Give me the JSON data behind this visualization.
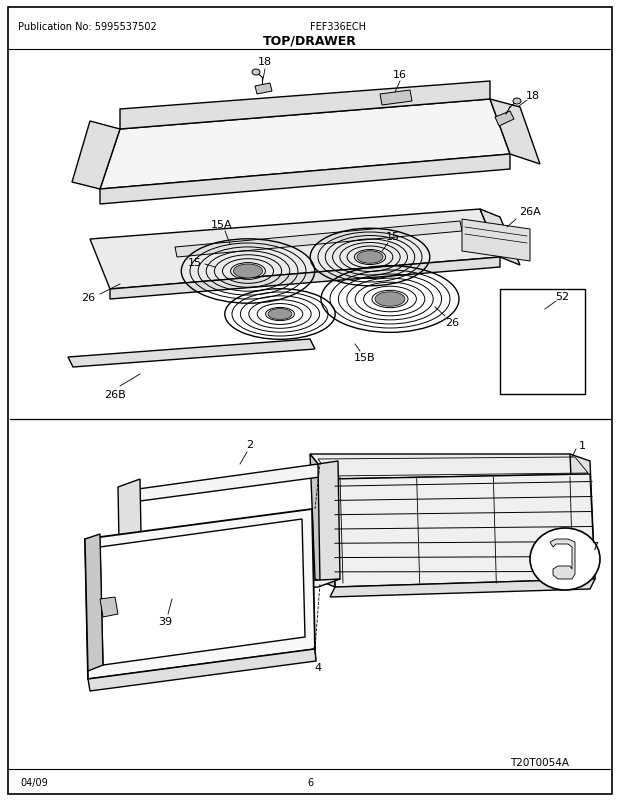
{
  "title": "TOP/DRAWER",
  "pub_no": "Publication No: 5995537502",
  "model": "FEF336ECH",
  "date": "04/09",
  "page": "6",
  "diagram_code": "T20T0054A",
  "bg_color": "#ffffff",
  "border_color": "#000000",
  "text_color": "#000000",
  "figsize": [
    6.2,
    8.03
  ],
  "dpi": 100
}
